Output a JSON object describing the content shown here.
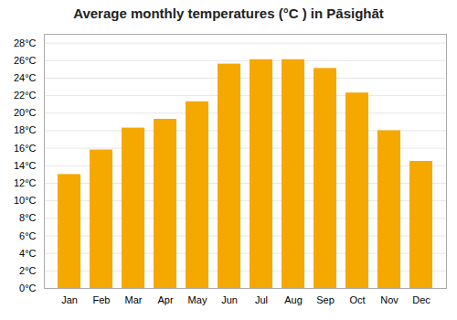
{
  "chart_data": {
    "type": "bar",
    "title": "Average monthly temperatures (°C ) in Pāsighāt",
    "categories": [
      "Jan",
      "Feb",
      "Mar",
      "Apr",
      "May",
      "Jun",
      "Jul",
      "Aug",
      "Sep",
      "Oct",
      "Nov",
      "Dec"
    ],
    "values": [
      13.0,
      15.8,
      18.3,
      19.3,
      21.3,
      25.6,
      26.1,
      26.1,
      25.1,
      22.3,
      18.0,
      14.5
    ],
    "color": "#F5A800",
    "ylim": [
      0,
      29
    ],
    "yticks": [
      {
        "value": 0,
        "label": "0°C"
      },
      {
        "value": 2,
        "label": "2°C"
      },
      {
        "value": 4,
        "label": "4°C"
      },
      {
        "value": 6,
        "label": "6°C"
      },
      {
        "value": 8,
        "label": "8°C"
      },
      {
        "value": 10,
        "label": "10°C"
      },
      {
        "value": 12,
        "label": "12°C"
      },
      {
        "value": 14,
        "label": "14°C"
      },
      {
        "value": 16,
        "label": "16°C"
      },
      {
        "value": 18,
        "label": "18°C"
      },
      {
        "value": 20,
        "label": "20°C"
      },
      {
        "value": 22,
        "label": "22°C"
      },
      {
        "value": 24,
        "label": "24°C"
      },
      {
        "value": 26,
        "label": "26°C"
      },
      {
        "value": 28,
        "label": "28°C"
      }
    ],
    "grid": true
  }
}
